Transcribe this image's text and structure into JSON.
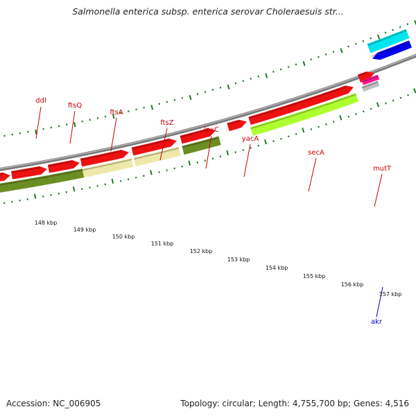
{
  "title": "Salmonella enterica subsp. enterica serovar Choleraesuis str...",
  "footer": {
    "accession": "Accession: NC_006905",
    "summary": "Topology: circular; Length: 4,755,700 bp; Genes: 4,516"
  },
  "colors": {
    "backbone": "#8a8a8a",
    "tick": "#1f7a1f",
    "cds": "#ee1111",
    "label_red": "#cc0000",
    "label_blue": "#0000cc",
    "olive": "#6b8e23",
    "khaki": "#eee8aa",
    "greenyellow": "#adff2f",
    "blue": "#0000ee",
    "cyan": "#00e5ee",
    "silver": "#c0c0c0",
    "magenta": "#ff1493"
  },
  "ticks": [
    {
      "label": "148 kbp"
    },
    {
      "label": "149 kbp"
    },
    {
      "label": "150 kbp"
    },
    {
      "label": "151 kbp"
    },
    {
      "label": "152 kbp"
    },
    {
      "label": "153 kbp"
    },
    {
      "label": "154 kbp"
    },
    {
      "label": "155 kbp"
    },
    {
      "label": "156 kbp"
    },
    {
      "label": "157 kbp"
    }
  ],
  "genes": [
    {
      "name": "ddl"
    },
    {
      "name": "ftsQ"
    },
    {
      "name": "ftsA"
    },
    {
      "name": "ftsZ"
    },
    {
      "name": "lpxC"
    },
    {
      "name": "yacA"
    },
    {
      "name": "secA"
    },
    {
      "name": "mutT"
    },
    {
      "name": "akr"
    }
  ]
}
